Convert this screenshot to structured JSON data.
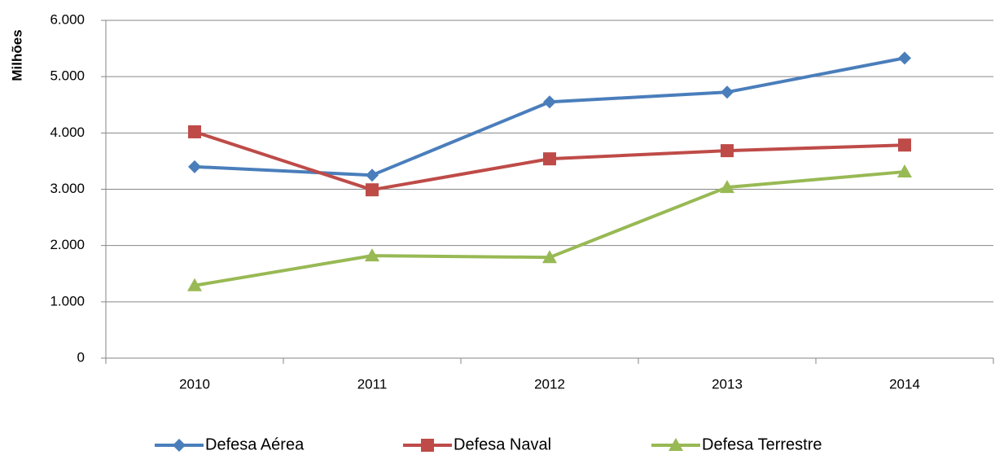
{
  "chart_data": {
    "type": "line",
    "ylabel": "Milhões",
    "categories": [
      "2010",
      "2011",
      "2012",
      "2013",
      "2014"
    ],
    "series": [
      {
        "name": "Defesa Aérea",
        "color": "#4a7ebb",
        "values": [
          3400,
          3250,
          4550,
          4725,
          5330
        ]
      },
      {
        "name": "Defesa Naval",
        "color": "#be4b48",
        "values": [
          4020,
          2990,
          3540,
          3685,
          3785
        ]
      },
      {
        "name": "Defesa Terrestre",
        "color": "#98b954",
        "values": [
          1290,
          1820,
          1790,
          3035,
          3310
        ]
      }
    ],
    "ylim": [
      0,
      6000
    ],
    "yticks": [
      0,
      {
        "value": 1000,
        "label": "1.000"
      },
      {
        "value": 2000,
        "label": "2.000"
      },
      {
        "value": 3000,
        "label": "3.000"
      },
      {
        "value": 4000,
        "label": "4.000"
      },
      {
        "value": 5000,
        "label": "5.000"
      },
      {
        "value": 6000,
        "label": "6.000"
      }
    ],
    "grid": true,
    "legend": "bottom"
  }
}
